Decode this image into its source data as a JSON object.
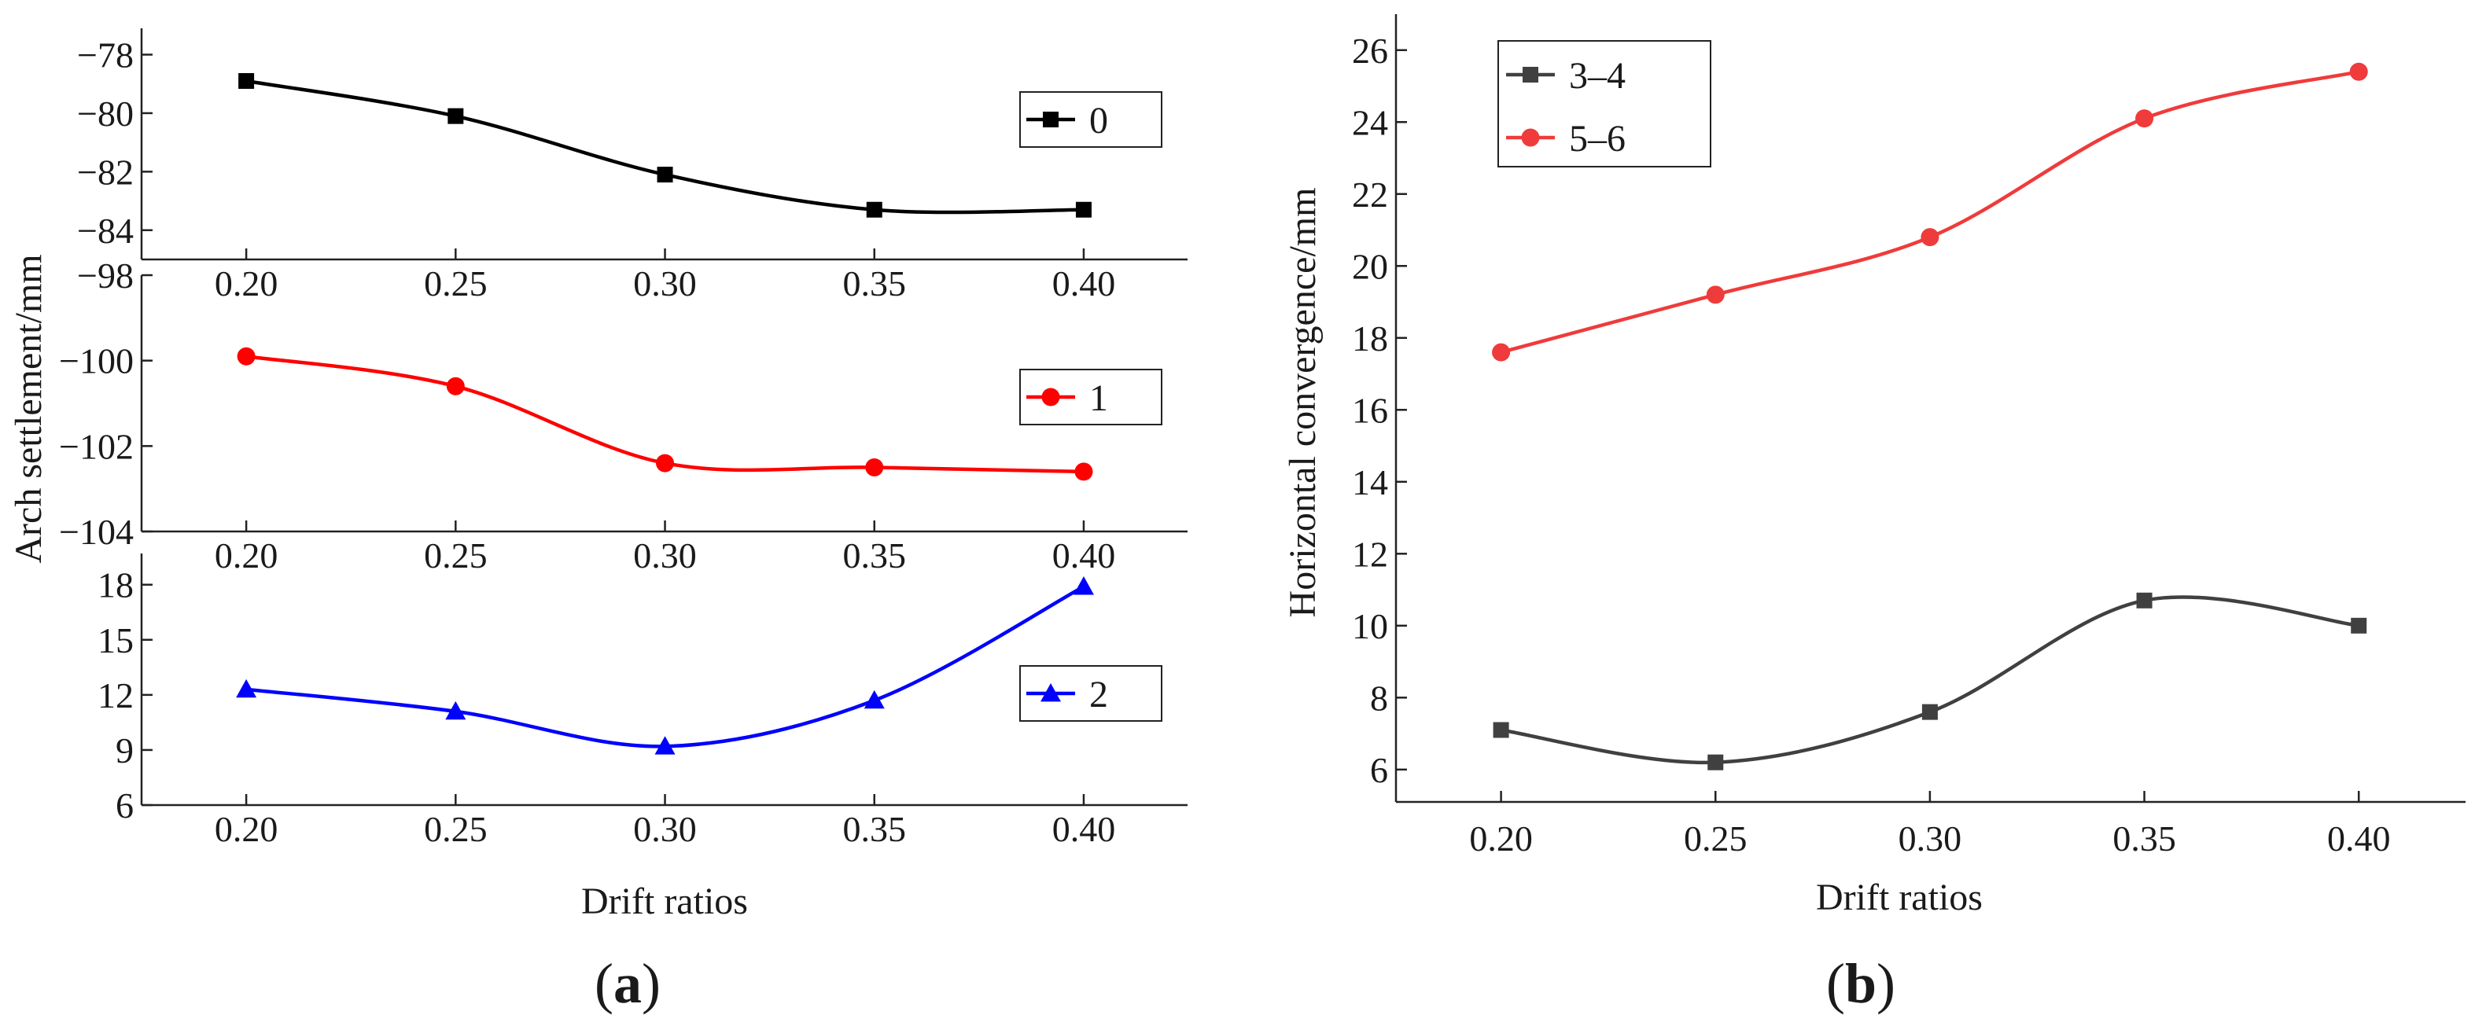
{
  "panel_labels": {
    "a": {
      "open": "(",
      "letter": "a",
      "close": ")"
    },
    "b": {
      "open": "(",
      "letter": "b",
      "close": ")"
    }
  },
  "chart_data": [
    {
      "panel": "a",
      "type": "line",
      "ylabel": "Arch settlement/mm",
      "xlabel": "Drift ratios",
      "subplots": [
        {
          "name": "0",
          "color": "#000000",
          "marker": "square",
          "x": [
            0.2,
            0.25,
            0.3,
            0.35,
            0.4
          ],
          "y": [
            -78.9,
            -80.1,
            -82.1,
            -83.3,
            -83.3
          ],
          "ylim": [
            -85.0,
            -77.1
          ],
          "yticks": [
            -78,
            -80,
            -82,
            -84
          ],
          "ytick_labels": [
            "−78",
            "−80",
            "−82",
            "−84"
          ],
          "xlim": [
            0.175,
            0.4248
          ],
          "xticks": [
            0.2,
            0.25,
            0.3,
            0.35,
            0.4
          ],
          "xtick_labels": [
            "0.20",
            "0.25",
            "0.30",
            "0.35",
            "0.40"
          ],
          "legend": "0",
          "legend_position": "right"
        },
        {
          "name": "1",
          "color": "#ff0000",
          "marker": "circle",
          "x": [
            0.2,
            0.25,
            0.3,
            0.35,
            0.4
          ],
          "y": [
            -99.9,
            -100.6,
            -102.4,
            -102.5,
            -102.6
          ],
          "ylim": [
            -104.0,
            -98.0
          ],
          "yticks": [
            -98,
            -100,
            -102,
            -104
          ],
          "ytick_labels": [
            "−98",
            "−100",
            "−102",
            "−104"
          ],
          "xlim": [
            0.175,
            0.4248
          ],
          "xticks": [
            0.2,
            0.25,
            0.3,
            0.35,
            0.4
          ],
          "xtick_labels": [
            "0.20",
            "0.25",
            "0.30",
            "0.35",
            "0.40"
          ],
          "legend": "1",
          "legend_position": "right"
        },
        {
          "name": "2",
          "color": "#0000ff",
          "marker": "triangle",
          "x": [
            0.2,
            0.25,
            0.3,
            0.35,
            0.4
          ],
          "y": [
            12.3,
            11.1,
            9.2,
            11.7,
            17.9
          ],
          "ylim": [
            6.0,
            19.7
          ],
          "yticks": [
            6,
            9,
            12,
            15,
            18
          ],
          "ytick_labels": [
            "6",
            "9",
            "12",
            "15",
            "18"
          ],
          "xlim": [
            0.175,
            0.4248
          ],
          "xticks": [
            0.2,
            0.25,
            0.3,
            0.35,
            0.4
          ],
          "xtick_labels": [
            "0.20",
            "0.25",
            "0.30",
            "0.35",
            "0.40"
          ],
          "legend": "2",
          "legend_position": "right"
        }
      ]
    },
    {
      "panel": "b",
      "type": "line",
      "ylabel": "Horizontal convergence/mm",
      "xlabel": "Drift ratios",
      "x": [
        0.2,
        0.25,
        0.3,
        0.35,
        0.4
      ],
      "series": [
        {
          "name": "3–4",
          "color": "#404040",
          "marker": "square",
          "values": [
            7.1,
            6.2,
            7.6,
            10.7,
            10.0
          ]
        },
        {
          "name": "5–6",
          "color": "#ef3b3b",
          "marker": "circle",
          "values": [
            17.6,
            19.2,
            20.8,
            24.1,
            25.4
          ]
        }
      ],
      "xlim": [
        0.1755,
        0.4249
      ],
      "xticks": [
        0.2,
        0.25,
        0.3,
        0.35,
        0.4
      ],
      "xtick_labels": [
        "0.20",
        "0.25",
        "0.30",
        "0.35",
        "0.40"
      ],
      "ylim": [
        5.1,
        27.0
      ],
      "yticks": [
        6,
        8,
        10,
        12,
        14,
        16,
        18,
        20,
        22,
        24,
        26
      ],
      "ytick_labels": [
        "6",
        "8",
        "10",
        "12",
        "14",
        "16",
        "18",
        "20",
        "22",
        "24",
        "26"
      ],
      "legend_position": "top-left"
    }
  ]
}
